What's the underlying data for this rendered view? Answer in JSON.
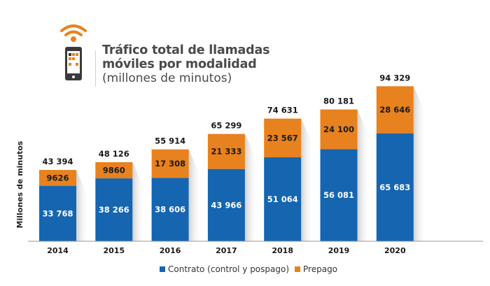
{
  "header": {
    "title_line1": "Tráfico total de llamadas",
    "title_line2": "móviles por modalidad",
    "subtitle": "(millones de minutos)",
    "icon": "phone-wifi-icon"
  },
  "colors": {
    "contrato": "#1565b0",
    "prepago": "#e8821e",
    "title": "#4a4a4a",
    "axis": "#999999"
  },
  "chart_data": {
    "type": "bar",
    "stacked": true,
    "title": "Tráfico total de llamadas móviles por modalidad (millones de minutos)",
    "xlabel": "",
    "ylabel": "Millones de minutos",
    "categories": [
      "2014",
      "2015",
      "2016",
      "2017",
      "2018",
      "2019",
      "2020"
    ],
    "series": [
      {
        "name": "Contrato (control y pospago)",
        "values": [
          33768,
          38266,
          38606,
          43966,
          51064,
          56081,
          65683
        ],
        "labels": [
          "33 768",
          "38 266",
          "38 606",
          "43 966",
          "51 064",
          "56 081",
          "65 683"
        ]
      },
      {
        "name": "Prepago",
        "values": [
          9626,
          9860,
          17308,
          21333,
          23567,
          24100,
          28646
        ],
        "labels": [
          "9626",
          "9860",
          "17 308",
          "21 333",
          "23 567",
          "24 100",
          "28 646"
        ]
      }
    ],
    "totals": [
      43394,
      48126,
      55914,
      65299,
      74631,
      80181,
      94329
    ],
    "total_labels": [
      "43 394",
      "48 126",
      "55 914",
      "65 299",
      "74 631",
      "80 181",
      "94 329"
    ],
    "ylim": [
      0,
      100000
    ],
    "grid": false,
    "legend": "bottom-center"
  },
  "legend": {
    "items": [
      {
        "label": "Contrato (control y pospago)",
        "color": "#1565b0"
      },
      {
        "label": "Prepago",
        "color": "#e8821e"
      }
    ]
  }
}
